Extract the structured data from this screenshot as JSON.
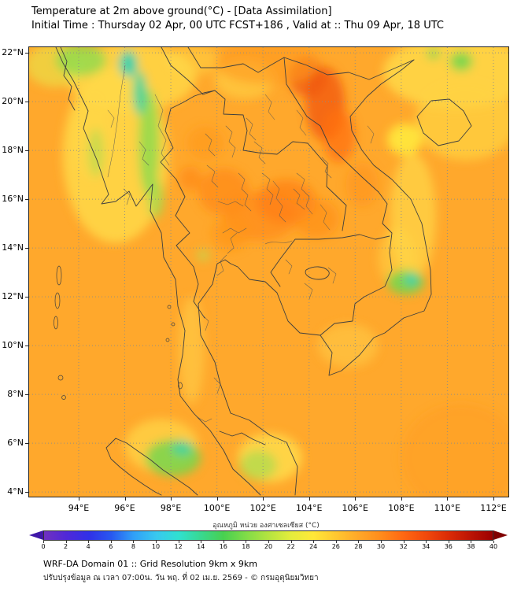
{
  "header": {
    "title": "Temperature at 2m above ground(°C) - [Data Assimilation]",
    "subtitle": "Initial Time : Thursday 02 Apr, 00 UTC FCST+186 , Valid at :: Thu 09 Apr, 18 UTC"
  },
  "map": {
    "lat_ticks": [
      "22°N",
      "20°N",
      "18°N",
      "16°N",
      "14°N",
      "12°N",
      "10°N",
      "8°N",
      "6°N",
      "4°N"
    ],
    "lat_values": [
      22,
      20,
      18,
      16,
      14,
      12,
      10,
      8,
      6,
      4
    ],
    "lon_ticks": [
      "94°E",
      "96°E",
      "98°E",
      "100°E",
      "102°E",
      "104°E",
      "106°E",
      "108°E",
      "110°E",
      "112°E"
    ],
    "lon_values": [
      94,
      96,
      98,
      100,
      102,
      104,
      106,
      108,
      110,
      112
    ],
    "extent": {
      "lon_min": 91.85,
      "lon_max": 112.65,
      "lat_min": 3.81,
      "lat_max": 22.23
    },
    "field": {
      "base_color": "#FFA82C",
      "blobs": [
        {
          "lon": 95.6,
          "lat": 17.8,
          "rx": 2.3,
          "ry": 3.6,
          "color": "#FFD948",
          "opacity": 0.85
        },
        {
          "lon": 96.3,
          "lat": 21.0,
          "rx": 2.8,
          "ry": 1.4,
          "color": "#FFD948",
          "opacity": 0.8
        },
        {
          "lon": 110.4,
          "lat": 21.2,
          "rx": 3.2,
          "ry": 1.5,
          "color": "#FFD948",
          "opacity": 0.85
        },
        {
          "lon": 110.8,
          "lat": 19.2,
          "rx": 2.2,
          "ry": 1.6,
          "color": "#FFD342",
          "opacity": 0.75
        },
        {
          "lon": 108.5,
          "lat": 15.3,
          "rx": 1.0,
          "ry": 2.6,
          "color": "#FFD948",
          "opacity": 0.7
        },
        {
          "lon": 108.15,
          "lat": 18.45,
          "rx": 0.75,
          "ry": 0.65,
          "color": "#FFE63C",
          "opacity": 0.95
        },
        {
          "lon": 105.7,
          "lat": 10.0,
          "rx": 1.3,
          "ry": 0.9,
          "color": "#FFD24A",
          "opacity": 0.5
        },
        {
          "lon": 98.9,
          "lat": 9.8,
          "rx": 0.55,
          "ry": 2.2,
          "color": "#FFD44C",
          "opacity": 0.55
        },
        {
          "lon": 101.2,
          "lat": 20.9,
          "rx": 1.3,
          "ry": 0.8,
          "color": "#FFD948",
          "opacity": 0.55
        },
        {
          "lon": 97.6,
          "lat": 5.9,
          "rx": 1.6,
          "ry": 1.1,
          "color": "#FFD948",
          "opacity": 0.7
        },
        {
          "lon": 102.3,
          "lat": 5.4,
          "rx": 1.4,
          "ry": 1.0,
          "color": "#FFDE4C",
          "opacity": 0.8
        },
        {
          "lon": 94.6,
          "lat": 18.6,
          "rx": 0.8,
          "ry": 1.8,
          "color": "#FFD948",
          "opacity": 0.5
        },
        {
          "lon": 107.8,
          "lat": 13.6,
          "rx": 0.8,
          "ry": 1.2,
          "color": "#FFD948",
          "opacity": 0.5
        },
        {
          "lon": 99.0,
          "lat": 21.7,
          "rx": 1.2,
          "ry": 0.6,
          "color": "#FFD948",
          "opacity": 0.5
        },
        {
          "lon": 93.0,
          "lat": 21.5,
          "rx": 1.3,
          "ry": 0.9,
          "color": "#E8E84C",
          "opacity": 0.6
        },
        {
          "lon": 100.3,
          "lat": 16.3,
          "rx": 1.1,
          "ry": 0.95,
          "color": "#FF8C18",
          "opacity": 0.8
        },
        {
          "lon": 101.9,
          "lat": 15.3,
          "rx": 1.6,
          "ry": 1.0,
          "color": "#FF8C18",
          "opacity": 0.75
        },
        {
          "lon": 103.0,
          "lat": 15.9,
          "rx": 1.3,
          "ry": 0.9,
          "color": "#FF7E12",
          "opacity": 0.7
        },
        {
          "lon": 104.3,
          "lat": 15.2,
          "rx": 1.0,
          "ry": 0.8,
          "color": "#FF8C18",
          "opacity": 0.6
        },
        {
          "lon": 104.7,
          "lat": 19.9,
          "rx": 0.85,
          "ry": 1.5,
          "color": "#F25A0E",
          "opacity": 0.8
        },
        {
          "lon": 105.3,
          "lat": 18.6,
          "rx": 0.7,
          "ry": 1.1,
          "color": "#FF700F",
          "opacity": 0.75
        },
        {
          "lon": 103.9,
          "lat": 21.0,
          "rx": 0.8,
          "ry": 0.8,
          "color": "#F0550C",
          "opacity": 0.7
        },
        {
          "lon": 99.5,
          "lat": 18.3,
          "rx": 0.8,
          "ry": 0.7,
          "color": "#FF9A20",
          "opacity": 0.7
        },
        {
          "lon": 98.85,
          "lat": 16.85,
          "rx": 0.5,
          "ry": 0.5,
          "color": "#FF8414",
          "opacity": 0.6
        },
        {
          "lon": 102.2,
          "lat": 21.6,
          "rx": 2.3,
          "ry": 0.9,
          "color": "#FF9A1E",
          "opacity": 0.6
        },
        {
          "lon": 110.6,
          "lat": 5.4,
          "rx": 2.6,
          "ry": 2.2,
          "color": "#FF9E22",
          "opacity": 0.5
        },
        {
          "lon": 100.6,
          "lat": 14.6,
          "rx": 0.8,
          "ry": 0.7,
          "color": "#FF9318",
          "opacity": 0.6
        },
        {
          "lon": 106.3,
          "lat": 16.6,
          "rx": 0.7,
          "ry": 0.9,
          "color": "#FF8C18",
          "opacity": 0.45
        },
        {
          "lon": 97.05,
          "lat": 18.3,
          "rx": 0.45,
          "ry": 2.2,
          "color": "#8FDB4E",
          "opacity": 0.85
        },
        {
          "lon": 96.65,
          "lat": 20.35,
          "rx": 0.3,
          "ry": 0.9,
          "color": "#40D49E",
          "opacity": 0.9
        },
        {
          "lon": 97.35,
          "lat": 16.0,
          "rx": 0.35,
          "ry": 0.8,
          "color": "#9ADB4E",
          "opacity": 0.7
        },
        {
          "lon": 94.75,
          "lat": 17.9,
          "rx": 0.35,
          "ry": 1.0,
          "color": "#AEDC50",
          "opacity": 0.6
        },
        {
          "lon": 94.1,
          "lat": 21.7,
          "rx": 1.1,
          "ry": 0.65,
          "color": "#8FDB4E",
          "opacity": 0.8
        },
        {
          "lon": 96.15,
          "lat": 21.55,
          "rx": 0.4,
          "ry": 0.55,
          "color": "#35D2AE",
          "opacity": 0.95
        },
        {
          "lon": 108.2,
          "lat": 12.6,
          "rx": 0.8,
          "ry": 0.5,
          "color": "#6FD74E",
          "opacity": 0.85
        },
        {
          "lon": 108.45,
          "lat": 12.7,
          "rx": 0.3,
          "ry": 0.22,
          "color": "#2FD2BE",
          "opacity": 0.9
        },
        {
          "lon": 98.1,
          "lat": 5.4,
          "rx": 1.2,
          "ry": 0.75,
          "color": "#6FD74E",
          "opacity": 0.8
        },
        {
          "lon": 98.5,
          "lat": 5.8,
          "rx": 0.45,
          "ry": 0.3,
          "color": "#35D2AE",
          "opacity": 0.8
        },
        {
          "lon": 101.8,
          "lat": 5.1,
          "rx": 0.8,
          "ry": 0.6,
          "color": "#A8DD4F",
          "opacity": 0.7
        },
        {
          "lon": 110.6,
          "lat": 21.65,
          "rx": 0.5,
          "ry": 0.4,
          "color": "#6FD74E",
          "opacity": 0.85
        },
        {
          "lon": 109.4,
          "lat": 21.95,
          "rx": 0.3,
          "ry": 0.22,
          "color": "#6FD74E",
          "opacity": 0.7
        },
        {
          "lon": 99.4,
          "lat": 13.7,
          "rx": 0.3,
          "ry": 0.25,
          "color": "#B9DF52",
          "opacity": 0.6
        }
      ]
    }
  },
  "colorbar": {
    "label": "อุณหภูมิ หน่วย องศาเซลเซียส (°C)",
    "min": 0,
    "max": 40,
    "ticks": [
      0,
      2,
      4,
      6,
      8,
      10,
      12,
      14,
      16,
      18,
      20,
      22,
      24,
      26,
      28,
      30,
      32,
      34,
      36,
      38,
      40
    ],
    "stops": [
      {
        "value": 0,
        "color": "#7030C0"
      },
      {
        "value": 2,
        "color": "#5028D8"
      },
      {
        "value": 4,
        "color": "#3030E8"
      },
      {
        "value": 6,
        "color": "#2858F0"
      },
      {
        "value": 8,
        "color": "#30A0F8"
      },
      {
        "value": 10,
        "color": "#38C8F0"
      },
      {
        "value": 12,
        "color": "#30E0D0"
      },
      {
        "value": 14,
        "color": "#38D890"
      },
      {
        "value": 16,
        "color": "#48D050"
      },
      {
        "value": 18,
        "color": "#80DC48"
      },
      {
        "value": 20,
        "color": "#B4E440"
      },
      {
        "value": 22,
        "color": "#E4EC3C"
      },
      {
        "value": 24,
        "color": "#FFE838"
      },
      {
        "value": 26,
        "color": "#FFC830"
      },
      {
        "value": 28,
        "color": "#FFA828"
      },
      {
        "value": 30,
        "color": "#FF8C1C"
      },
      {
        "value": 32,
        "color": "#FF6812"
      },
      {
        "value": 34,
        "color": "#F24A0C"
      },
      {
        "value": 36,
        "color": "#DC2C06"
      },
      {
        "value": 38,
        "color": "#BC1404"
      },
      {
        "value": 40,
        "color": "#9C0000"
      }
    ],
    "arrow_left_color": "#4018A8",
    "arrow_right_color": "#800000"
  },
  "footer": {
    "line1": "WRF-DA Domain 01 :: Grid Resolution 9km x 9km",
    "line2": "ปรับปรุงข้อมูล ณ เวลา 07:00น. วัน พฤ. ที่ 02 เม.ย. 2569 - © กรมอุตุนิยมวิทยา"
  }
}
